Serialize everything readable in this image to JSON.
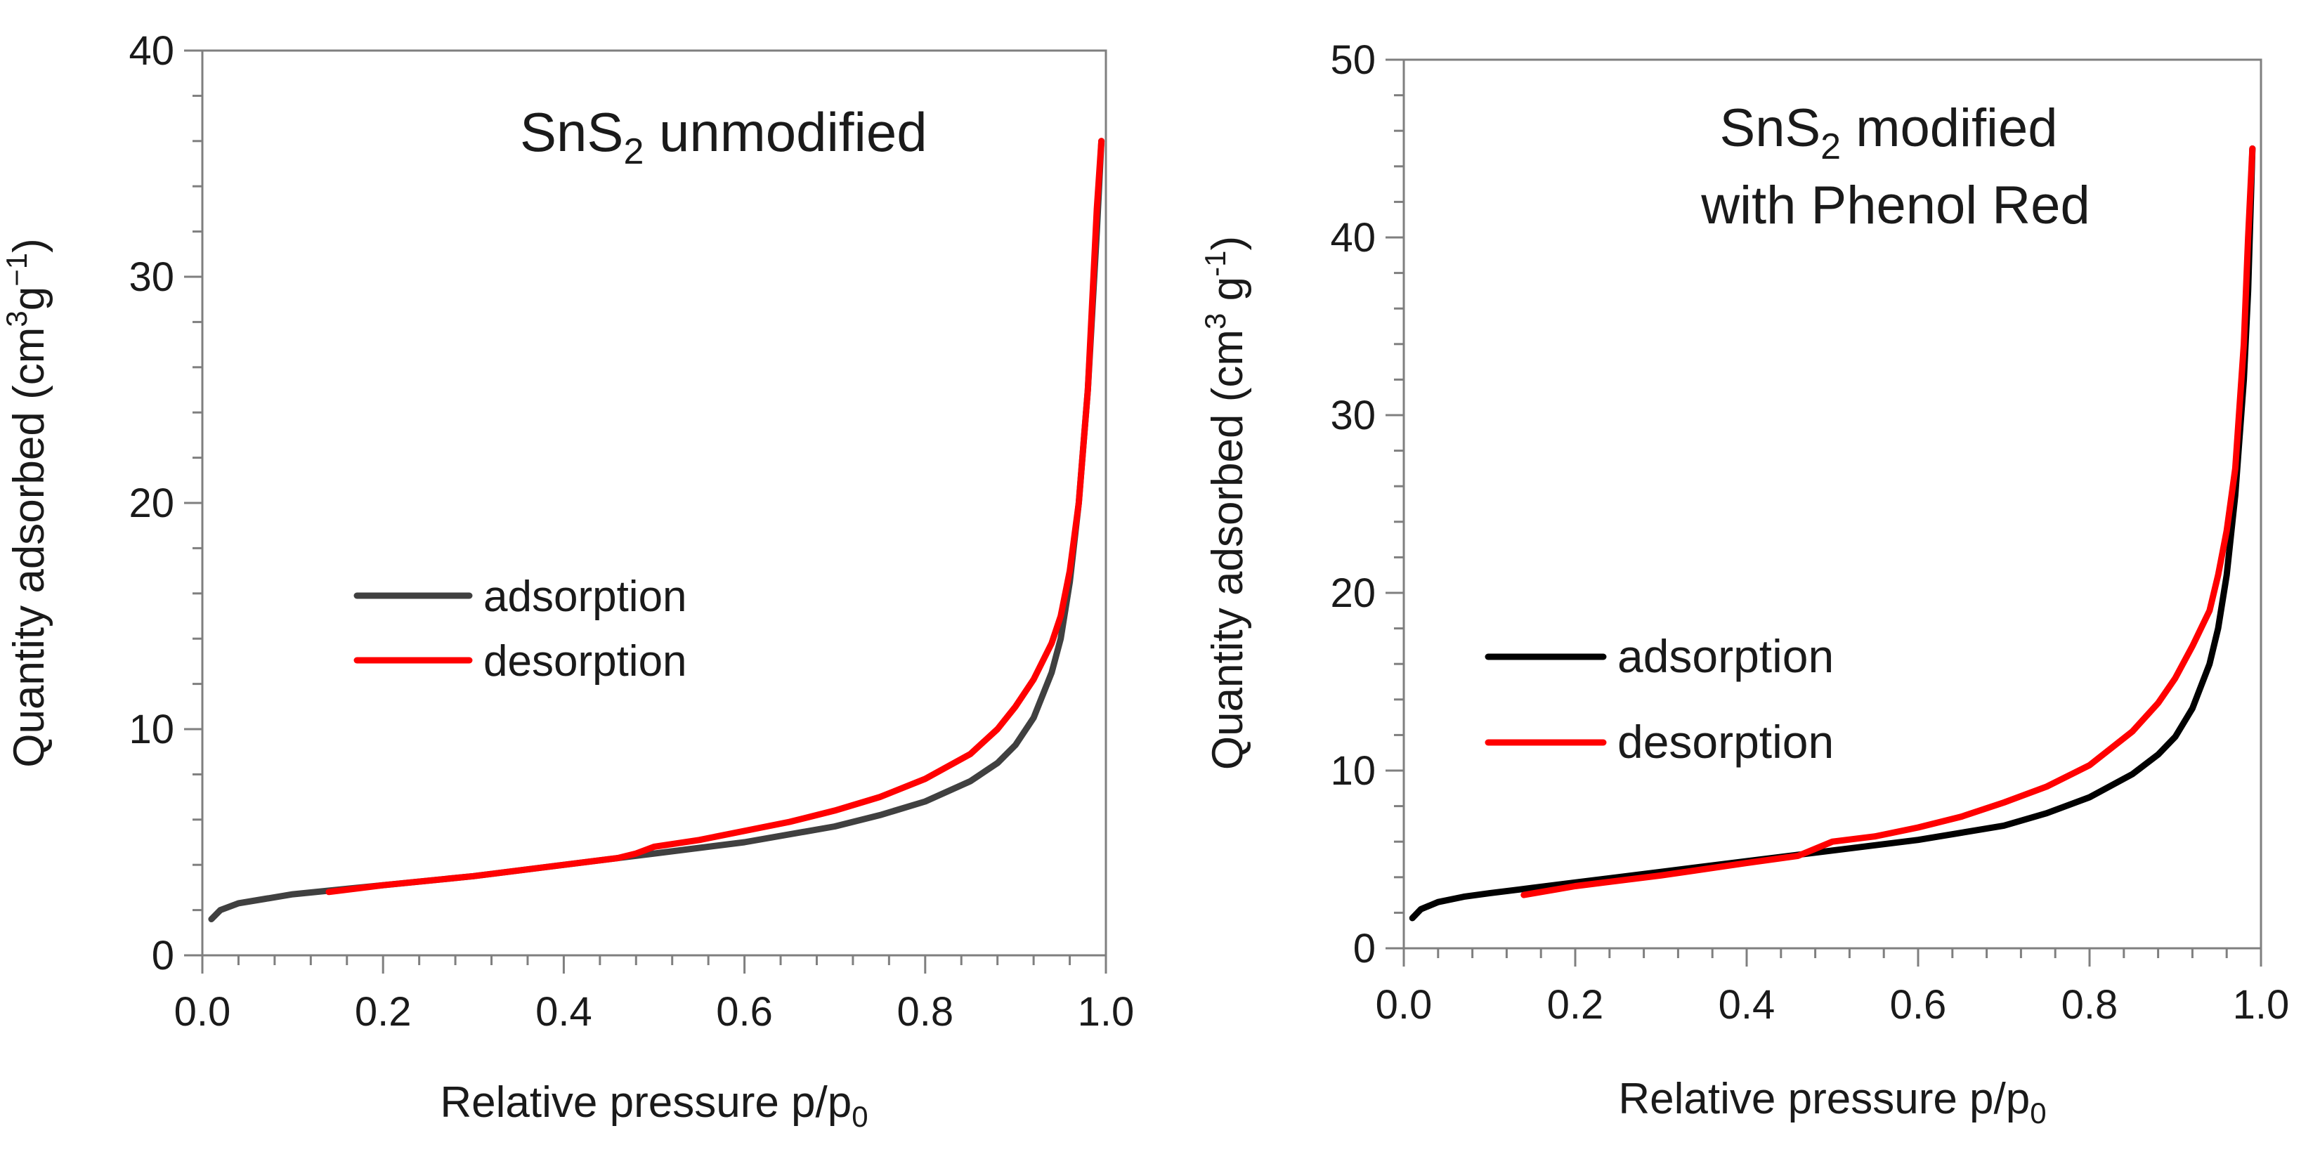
{
  "chart_data": [
    {
      "type": "line",
      "title": {
        "text": "SnS",
        "sub": "2",
        "rest": " unmodified"
      },
      "xlabel": {
        "main": "Relative pressure p/p",
        "sub": "0"
      },
      "ylabel": {
        "main": "Quantity adsorbed (cm",
        "sup1": "3",
        "mid": "g",
        "sup2": "−1",
        "end": ")"
      },
      "xlim": [
        0,
        1
      ],
      "ylim": [
        0,
        40
      ],
      "xticks": [
        0.0,
        0.2,
        0.4,
        0.6,
        0.8,
        1.0
      ],
      "xtick_labels": [
        "0.0",
        "0.2",
        "0.4",
        "0.6",
        "0.8",
        "1.0"
      ],
      "yticks": [
        0,
        10,
        20,
        30,
        40
      ],
      "ytick_labels": [
        "0",
        "10",
        "20",
        "30",
        "40"
      ],
      "legend": {
        "placement": "center-left",
        "entries": [
          "adsorption",
          "desorption"
        ]
      },
      "series": [
        {
          "name": "adsorption",
          "color": "#404040",
          "x": [
            0.01,
            0.02,
            0.04,
            0.07,
            0.1,
            0.15,
            0.2,
            0.3,
            0.4,
            0.5,
            0.6,
            0.7,
            0.75,
            0.8,
            0.85,
            0.88,
            0.9,
            0.92,
            0.94,
            0.95,
            0.96,
            0.97,
            0.98,
            0.985,
            0.99,
            0.995
          ],
          "y": [
            1.6,
            2.0,
            2.3,
            2.5,
            2.7,
            2.9,
            3.1,
            3.5,
            4.0,
            4.5,
            5.0,
            5.7,
            6.2,
            6.8,
            7.7,
            8.5,
            9.3,
            10.5,
            12.5,
            14.0,
            16.5,
            20.0,
            25.0,
            28.5,
            32.0,
            36.0
          ]
        },
        {
          "name": "desorption",
          "color": "#ff0000",
          "x": [
            0.995,
            0.99,
            0.985,
            0.98,
            0.97,
            0.96,
            0.95,
            0.94,
            0.92,
            0.9,
            0.88,
            0.85,
            0.8,
            0.75,
            0.7,
            0.65,
            0.6,
            0.55,
            0.5,
            0.48,
            0.46,
            0.4,
            0.3,
            0.2,
            0.14
          ],
          "y": [
            36.0,
            33.0,
            29.0,
            25.0,
            20.0,
            17.0,
            15.0,
            13.8,
            12.2,
            11.0,
            10.0,
            8.9,
            7.8,
            7.0,
            6.4,
            5.9,
            5.5,
            5.1,
            4.8,
            4.5,
            4.3,
            4.0,
            3.5,
            3.1,
            2.8
          ]
        }
      ]
    },
    {
      "type": "line",
      "title": {
        "text": "SnS",
        "sub": "2",
        "rest": " modified",
        "line2": "with Phenol Red"
      },
      "xlabel": {
        "main": "Relative pressure p/p",
        "sub": "0"
      },
      "ylabel": {
        "main": "Quantity adsorbed (cm",
        "sup1": "3",
        "mid": " g",
        "sup2": "-1",
        "end": ")"
      },
      "xlim": [
        0,
        1
      ],
      "ylim": [
        0,
        50
      ],
      "xticks": [
        0.0,
        0.2,
        0.4,
        0.6,
        0.8,
        1.0
      ],
      "xtick_labels": [
        "0.0",
        "0.2",
        "0.4",
        "0.6",
        "0.8",
        "1.0"
      ],
      "yticks": [
        0,
        10,
        20,
        30,
        40,
        50
      ],
      "ytick_labels": [
        "0",
        "10",
        "20",
        "30",
        "40",
        "50"
      ],
      "legend": {
        "placement": "center-left",
        "entries": [
          "adsorption",
          "desorption"
        ]
      },
      "series": [
        {
          "name": "adsorption",
          "color": "#000000",
          "x": [
            0.01,
            0.02,
            0.04,
            0.07,
            0.1,
            0.15,
            0.2,
            0.3,
            0.4,
            0.5,
            0.6,
            0.7,
            0.75,
            0.8,
            0.85,
            0.88,
            0.9,
            0.92,
            0.94,
            0.95,
            0.96,
            0.97,
            0.98,
            0.985,
            0.99
          ],
          "y": [
            1.7,
            2.2,
            2.6,
            2.9,
            3.1,
            3.4,
            3.7,
            4.3,
            4.9,
            5.5,
            6.1,
            6.9,
            7.6,
            8.5,
            9.8,
            10.9,
            11.9,
            13.5,
            16.0,
            18.0,
            21.0,
            25.5,
            32.0,
            37.0,
            45.0
          ]
        },
        {
          "name": "desorption",
          "color": "#ff0000",
          "x": [
            0.99,
            0.985,
            0.98,
            0.97,
            0.96,
            0.95,
            0.94,
            0.92,
            0.9,
            0.88,
            0.85,
            0.8,
            0.75,
            0.7,
            0.65,
            0.6,
            0.55,
            0.5,
            0.48,
            0.46,
            0.4,
            0.3,
            0.2,
            0.14
          ],
          "y": [
            45.0,
            40.0,
            34.0,
            27.0,
            23.5,
            21.0,
            19.0,
            17.0,
            15.2,
            13.8,
            12.2,
            10.3,
            9.1,
            8.2,
            7.4,
            6.8,
            6.3,
            6.0,
            5.6,
            5.2,
            4.8,
            4.1,
            3.5,
            3.0
          ]
        }
      ]
    }
  ]
}
